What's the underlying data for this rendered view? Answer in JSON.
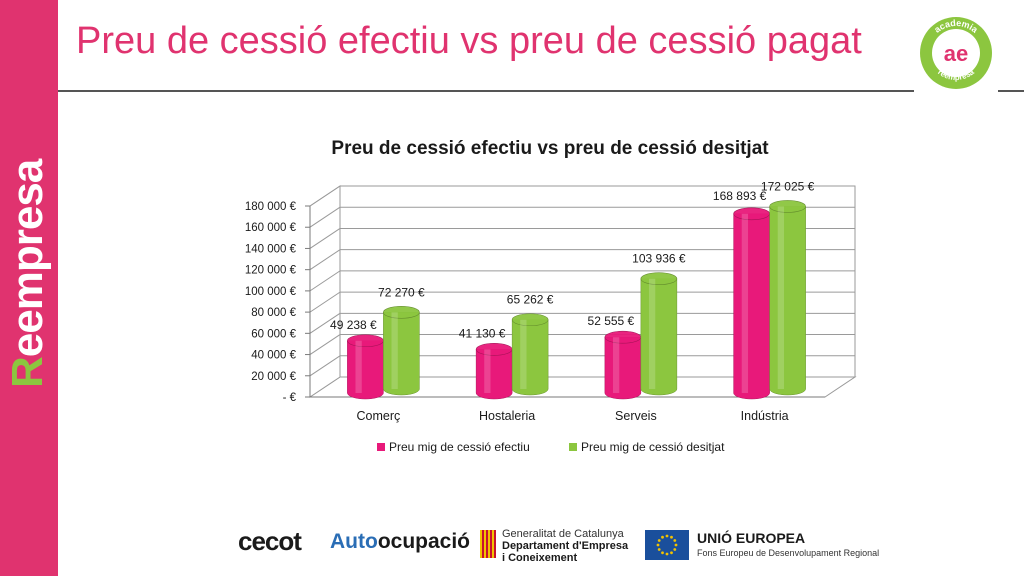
{
  "slide": {
    "title": "Preu de cessió efectiu vs preu de cessió pagat",
    "brand_first": "R",
    "brand_rest": "eempresa"
  },
  "logo": {
    "top_text": "academia",
    "mark": "ae",
    "bottom_text": "reempresa",
    "ring_color": "#8cc63f",
    "mark_color": "#e0336f"
  },
  "chart_data": {
    "type": "bar",
    "title": "Preu de cessió efectiu vs preu de cessió desitjat",
    "categories": [
      "Comerç",
      "Hostaleria",
      "Serveis",
      "Indústria"
    ],
    "series": [
      {
        "name": "Preu mig de cessió efectiu",
        "values": [
          49238,
          41130,
          52555,
          168893
        ],
        "labels": [
          "49 238 €",
          "41 130 €",
          "52 555 €",
          "168 893 €"
        ],
        "color": "#e8197a"
      },
      {
        "name": "Preu mig de cessió desitjat",
        "values": [
          72270,
          65262,
          103936,
          172025
        ],
        "labels": [
          "72 270 €",
          "65 262 €",
          "103 936 €",
          "172 025 €"
        ],
        "color": "#8cc63f"
      }
    ],
    "yticks": [
      0,
      20000,
      40000,
      60000,
      80000,
      100000,
      120000,
      140000,
      160000,
      180000
    ],
    "ytick_labels": [
      "-  €",
      "20 000 €",
      "40 000 €",
      "60 000 €",
      "80 000 €",
      "100 000 €",
      "120 000 €",
      "140 000 €",
      "160 000 €",
      "180 000 €"
    ],
    "ylim": [
      0,
      180000
    ],
    "grid": true,
    "style": "3d-cylinder",
    "legend_position": "bottom"
  },
  "footer": {
    "cecot": "cecot",
    "autoocupacio_a": "Auto",
    "autoocupacio_b": "ocupació",
    "generalitat_line1": "Generalitat de Catalunya",
    "generalitat_line2": "Departament d'Empresa",
    "generalitat_line3": "i Coneixement",
    "eu_line1": "UNIÓ EUROPEA",
    "eu_line2": "Fons Europeu de Desenvolupament Regional"
  }
}
